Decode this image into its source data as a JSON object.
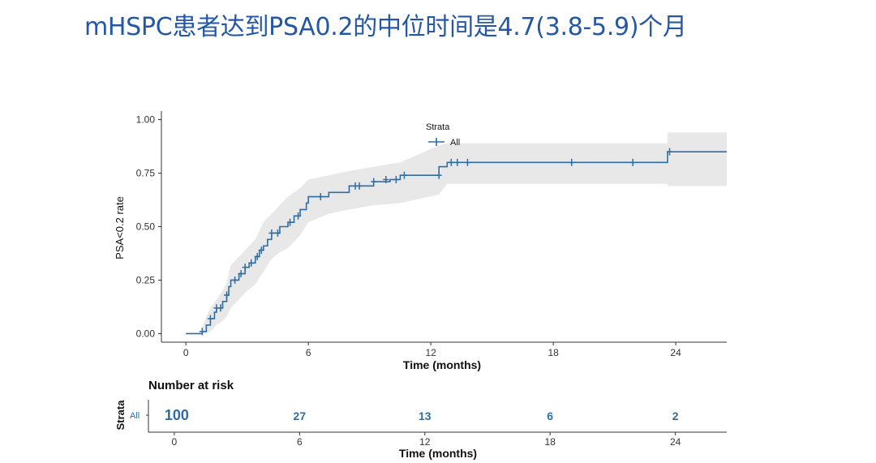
{
  "slide": {
    "title": "mHSPC患者达到PSA0.2的中位时间是4.7(3.8-5.9)个月"
  },
  "colors": {
    "title": "#2458a6",
    "curve": "#2e6da4",
    "ci_band": "#e8e8e8",
    "risk_numbers": "#2e6da4"
  },
  "chart_data": {
    "type": "line",
    "step": true,
    "ylabel": "PSA<0.2 rate",
    "xlabel": "Time (months)",
    "xlim": [
      -1.2,
      26.5
    ],
    "ylim": [
      -0.04,
      1.04
    ],
    "x_ticks": [
      0,
      6,
      12,
      18,
      24
    ],
    "y_ticks": [
      0.0,
      0.25,
      0.5,
      0.75,
      1.0
    ],
    "y_tick_labels": [
      "0.00",
      "0.25",
      "0.50",
      "0.75",
      "1.00"
    ],
    "grid": false,
    "legend": {
      "title": "Strata",
      "placement": "top",
      "entries": [
        "All"
      ]
    },
    "series": [
      {
        "name": "All",
        "points": [
          [
            0.0,
            0.0
          ],
          [
            0.8,
            0.0
          ],
          [
            0.8,
            0.01
          ],
          [
            1.0,
            0.01
          ],
          [
            1.0,
            0.04
          ],
          [
            1.2,
            0.04
          ],
          [
            1.2,
            0.07
          ],
          [
            1.4,
            0.07
          ],
          [
            1.4,
            0.1
          ],
          [
            1.5,
            0.1
          ],
          [
            1.5,
            0.12
          ],
          [
            1.8,
            0.12
          ],
          [
            1.8,
            0.15
          ],
          [
            2.0,
            0.15
          ],
          [
            2.0,
            0.18
          ],
          [
            2.1,
            0.18
          ],
          [
            2.1,
            0.22
          ],
          [
            2.2,
            0.22
          ],
          [
            2.2,
            0.25
          ],
          [
            2.6,
            0.25
          ],
          [
            2.6,
            0.28
          ],
          [
            2.9,
            0.28
          ],
          [
            2.9,
            0.31
          ],
          [
            3.1,
            0.31
          ],
          [
            3.1,
            0.33
          ],
          [
            3.4,
            0.33
          ],
          [
            3.4,
            0.36
          ],
          [
            3.6,
            0.36
          ],
          [
            3.6,
            0.39
          ],
          [
            3.8,
            0.39
          ],
          [
            3.8,
            0.41
          ],
          [
            4.0,
            0.41
          ],
          [
            4.0,
            0.44
          ],
          [
            4.2,
            0.44
          ],
          [
            4.2,
            0.47
          ],
          [
            4.6,
            0.47
          ],
          [
            4.6,
            0.5
          ],
          [
            5.0,
            0.5
          ],
          [
            5.0,
            0.52
          ],
          [
            5.3,
            0.52
          ],
          [
            5.3,
            0.55
          ],
          [
            5.6,
            0.55
          ],
          [
            5.6,
            0.58
          ],
          [
            5.9,
            0.58
          ],
          [
            5.9,
            0.61
          ],
          [
            6.0,
            0.61
          ],
          [
            6.0,
            0.64
          ],
          [
            7.0,
            0.64
          ],
          [
            7.0,
            0.66
          ],
          [
            8.0,
            0.66
          ],
          [
            8.0,
            0.69
          ],
          [
            9.2,
            0.69
          ],
          [
            9.2,
            0.71
          ],
          [
            10.0,
            0.71
          ],
          [
            10.0,
            0.72
          ],
          [
            10.5,
            0.72
          ],
          [
            10.5,
            0.74
          ],
          [
            12.4,
            0.74
          ],
          [
            12.4,
            0.78
          ],
          [
            12.8,
            0.78
          ],
          [
            12.8,
            0.8
          ],
          [
            23.6,
            0.8
          ],
          [
            23.6,
            0.85
          ],
          [
            26.5,
            0.85
          ]
        ],
        "ci_band": [
          [
            0.0,
            0.0,
            0.0
          ],
          [
            0.8,
            0.0,
            0.0
          ],
          [
            0.8,
            0.0,
            0.03
          ],
          [
            1.0,
            0.0,
            0.08
          ],
          [
            1.2,
            0.01,
            0.12
          ],
          [
            1.5,
            0.04,
            0.16
          ],
          [
            1.8,
            0.06,
            0.2
          ],
          [
            2.0,
            0.08,
            0.24
          ],
          [
            2.2,
            0.12,
            0.32
          ],
          [
            2.6,
            0.16,
            0.36
          ],
          [
            3.0,
            0.2,
            0.4
          ],
          [
            3.4,
            0.23,
            0.44
          ],
          [
            3.8,
            0.29,
            0.52
          ],
          [
            4.2,
            0.35,
            0.56
          ],
          [
            4.6,
            0.38,
            0.6
          ],
          [
            5.0,
            0.4,
            0.64
          ],
          [
            5.6,
            0.46,
            0.68
          ],
          [
            6.0,
            0.52,
            0.72
          ],
          [
            7.0,
            0.56,
            0.74
          ],
          [
            8.0,
            0.58,
            0.76
          ],
          [
            9.2,
            0.6,
            0.78
          ],
          [
            10.5,
            0.61,
            0.8
          ],
          [
            12.4,
            0.65,
            0.88
          ],
          [
            12.8,
            0.7,
            0.89
          ],
          [
            23.6,
            0.7,
            0.89
          ],
          [
            23.6,
            0.69,
            0.94
          ],
          [
            26.5,
            0.69,
            0.94
          ]
        ],
        "censor_marks": [
          [
            0.8,
            0.01
          ],
          [
            1.2,
            0.07
          ],
          [
            1.5,
            0.12
          ],
          [
            1.7,
            0.12
          ],
          [
            2.0,
            0.18
          ],
          [
            2.4,
            0.25
          ],
          [
            2.7,
            0.28
          ],
          [
            2.9,
            0.31
          ],
          [
            3.2,
            0.33
          ],
          [
            3.5,
            0.36
          ],
          [
            3.7,
            0.39
          ],
          [
            4.2,
            0.47
          ],
          [
            4.5,
            0.47
          ],
          [
            5.1,
            0.52
          ],
          [
            5.5,
            0.55
          ],
          [
            6.6,
            0.64
          ],
          [
            8.3,
            0.69
          ],
          [
            8.5,
            0.69
          ],
          [
            9.2,
            0.71
          ],
          [
            9.8,
            0.72
          ],
          [
            10.3,
            0.72
          ],
          [
            10.7,
            0.74
          ],
          [
            12.4,
            0.74
          ],
          [
            13.0,
            0.8
          ],
          [
            13.3,
            0.8
          ],
          [
            13.8,
            0.8
          ],
          [
            18.9,
            0.8
          ],
          [
            21.9,
            0.8
          ],
          [
            23.7,
            0.85
          ]
        ]
      }
    ],
    "risk_table": {
      "title": "Number at risk",
      "ylabel": "Strata",
      "strata": [
        "All"
      ],
      "times": [
        0,
        6,
        12,
        18,
        24
      ],
      "counts": [
        100,
        27,
        13,
        6,
        2
      ],
      "xlabel": "Time (months)"
    }
  }
}
